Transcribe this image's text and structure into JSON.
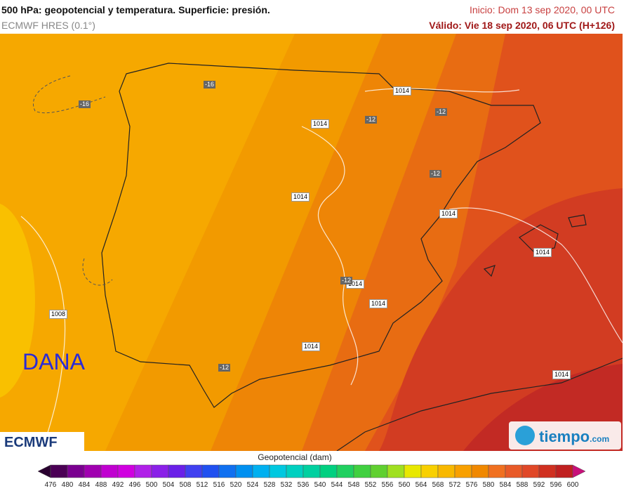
{
  "header": {
    "title": "500 hPa: geopotencial y temperatura. Superficie: presión.",
    "model": "ECMWF HRES (0.1°)",
    "init": "Inicio: Dom 13 sep 2020, 00 UTC",
    "valid": "Válido: Vie 18 sep 2020, 06 UTC (H+126)"
  },
  "map": {
    "pressure_labels": [
      "1014",
      "1014",
      "1014",
      "1014",
      "1014",
      "1014",
      "1014",
      "1014",
      "1008",
      "1014"
    ],
    "temperature_labels": [
      "-16",
      "-16",
      "-12",
      "-12",
      "-12",
      "-12",
      "-12"
    ],
    "annotation": "DANA"
  },
  "logos": {
    "left": "ECMWF",
    "right": "tiempo",
    "right_suffix": ".com"
  },
  "colorbar": {
    "title": "Geopotencial (dam)",
    "ticks": [
      "476",
      "480",
      "484",
      "488",
      "492",
      "496",
      "500",
      "504",
      "508",
      "512",
      "516",
      "520",
      "524",
      "528",
      "532",
      "536",
      "540",
      "544",
      "548",
      "552",
      "556",
      "560",
      "564",
      "568",
      "572",
      "576",
      "580",
      "584",
      "588",
      "592",
      "596",
      "600"
    ],
    "under_color": "#2a0030",
    "over_color": "#c8107a",
    "colors": [
      "#4b0055",
      "#7a0090",
      "#a000b0",
      "#c000d0",
      "#d000e0",
      "#b020e8",
      "#8a20e8",
      "#6a20e8",
      "#4040f0",
      "#2050f0",
      "#1070f0",
      "#0090f0",
      "#00b0f0",
      "#00c8e0",
      "#00d0c0",
      "#00d0a0",
      "#00d080",
      "#20d060",
      "#40d040",
      "#60d030",
      "#a0e020",
      "#e8e800",
      "#f8d000",
      "#f8b800",
      "#f8a000",
      "#f08800",
      "#f07020",
      "#e85a28",
      "#e04828",
      "#d03020",
      "#c02020"
    ]
  }
}
